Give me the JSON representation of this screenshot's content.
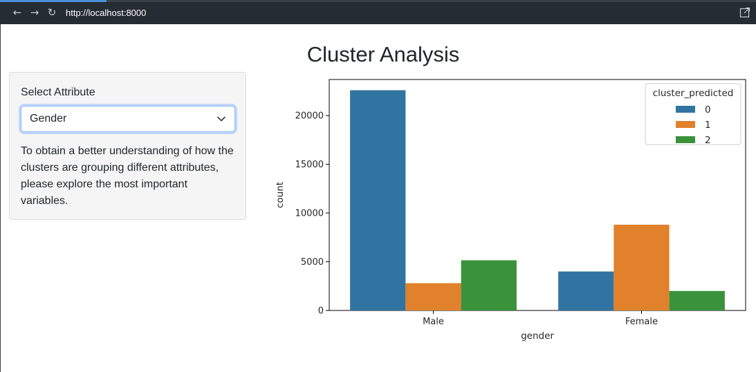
{
  "browser": {
    "url": "http://localhost:8000",
    "back_icon": "arrow-left",
    "forward_icon": "arrow-right",
    "reload_icon": "reload",
    "popout_icon": "external-link"
  },
  "page": {
    "title": "Cluster Analysis"
  },
  "sidebar": {
    "select_label": "Select Attribute",
    "select_value": "Gender",
    "description": "To obtain a better understanding of how the clusters are grouping different attributes, please explore the most important variables."
  },
  "chart_data": {
    "type": "bar",
    "categories": [
      "Male",
      "Female"
    ],
    "series": [
      {
        "name": "0",
        "values": [
          22600,
          4000
        ],
        "color": "#3274a1"
      },
      {
        "name": "1",
        "values": [
          2800,
          8800
        ],
        "color": "#e1812c"
      },
      {
        "name": "2",
        "values": [
          5150,
          2000
        ],
        "color": "#3a923a"
      }
    ],
    "xlabel": "gender",
    "ylabel": "count",
    "ylim": [
      0,
      23700
    ],
    "yticks": [
      0,
      5000,
      10000,
      15000,
      20000
    ],
    "legend_title": "cluster_predicted",
    "legend_position": "top-right",
    "grid": false
  }
}
